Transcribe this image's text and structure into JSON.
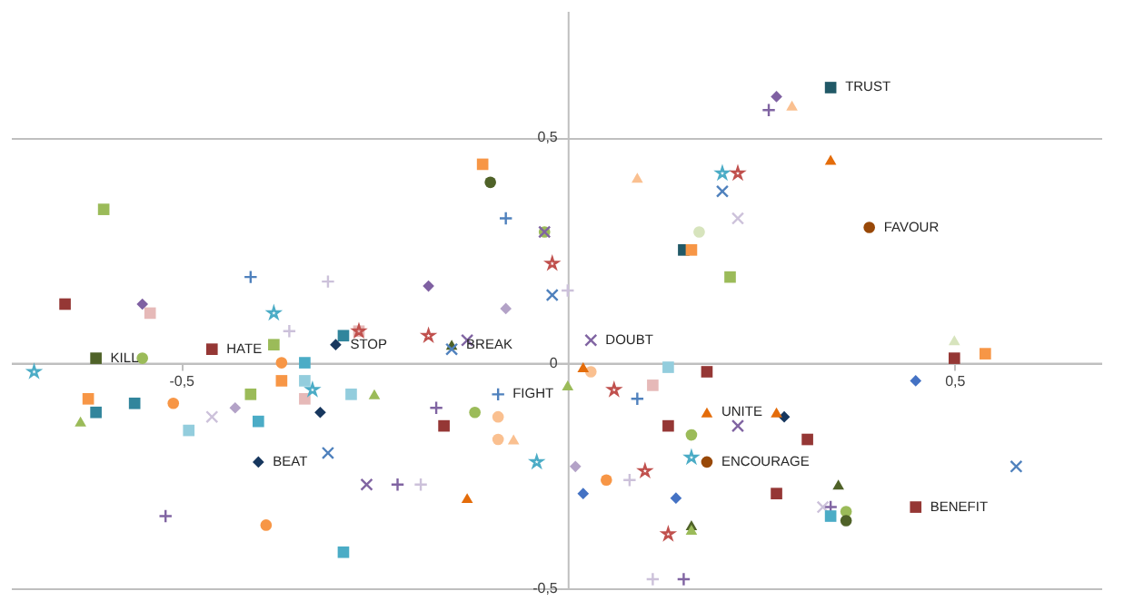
{
  "chart_data": {
    "type": "scatter",
    "xlim": [
      -0.72,
      0.69
    ],
    "ylim": [
      -0.5,
      0.78
    ],
    "xticks": [
      {
        "value": -0.5,
        "label": "-0,5"
      },
      {
        "value": 0.5,
        "label": "0,5"
      }
    ],
    "yticks": [
      {
        "value": -0.5,
        "label": "-0,5"
      },
      {
        "value": 0,
        "label": "0"
      },
      {
        "value": 0.5,
        "label": "0,5"
      }
    ],
    "grid": "y",
    "annotations": [
      {
        "text": "TRUST",
        "x": 0.34,
        "y": 0.61
      },
      {
        "text": "FAVOUR",
        "x": 0.39,
        "y": 0.3
      },
      {
        "text": "UNITE",
        "x": 0.18,
        "y": -0.11
      },
      {
        "text": "ENCOURAGE",
        "x": 0.18,
        "y": -0.22
      },
      {
        "text": "BENEFIT",
        "x": 0.45,
        "y": -0.32
      },
      {
        "text": "BEAT",
        "x": -0.4,
        "y": -0.22
      },
      {
        "text": "HATE",
        "x": -0.46,
        "y": 0.03
      },
      {
        "text": "KILL",
        "x": -0.61,
        "y": 0.01
      },
      {
        "text": "STOP",
        "x": -0.3,
        "y": 0.04
      },
      {
        "text": "BREAK",
        "x": -0.15,
        "y": 0.04
      },
      {
        "text": "FIGHT",
        "x": -0.09,
        "y": -0.07
      },
      {
        "text": "DOUBT",
        "x": 0.03,
        "y": 0.05
      }
    ],
    "series": [
      {
        "marker": "square",
        "color": "#215967",
        "x": [
          0.34,
          0.15
        ],
        "values": [
          0.61,
          0.25
        ]
      },
      {
        "marker": "square",
        "color": "#31859c",
        "x": [
          -0.61,
          -0.56,
          -0.29
        ],
        "values": [
          -0.11,
          -0.09,
          0.06
        ]
      },
      {
        "marker": "square",
        "color": "#93cddd",
        "x": [
          -0.49,
          -0.34,
          -0.28,
          0.13
        ],
        "values": [
          -0.15,
          -0.04,
          -0.07,
          -0.01
        ]
      },
      {
        "marker": "square",
        "color": "#953735",
        "x": [
          -0.65,
          0.45,
          0.18,
          0.13,
          0.27
        ],
        "values": [
          0.13,
          -0.32,
          -0.02,
          -0.14,
          -0.29
        ]
      },
      {
        "marker": "square",
        "color": "#e6b9b8",
        "x": [
          -0.54,
          -0.34,
          -0.27,
          0.11
        ],
        "values": [
          0.11,
          -0.08,
          0.07,
          -0.05
        ]
      },
      {
        "marker": "diamond",
        "color": "#17375e",
        "x": [
          -0.4,
          -0.3,
          -0.32,
          0.28
        ],
        "values": [
          -0.22,
          0.04,
          -0.11,
          -0.12
        ]
      },
      {
        "marker": "diamond",
        "color": "#7f60a2",
        "x": [
          -0.55,
          -0.18,
          0.27
        ],
        "values": [
          0.13,
          0.17,
          0.59
        ]
      },
      {
        "marker": "diamond",
        "color": "#b3a2c7",
        "x": [
          -0.43,
          -0.08,
          0.01
        ],
        "values": [
          -0.1,
          0.12,
          -0.23
        ]
      },
      {
        "marker": "diamond",
        "color": "#4472c4",
        "x": [
          0.02,
          0.14,
          0.45
        ],
        "values": [
          -0.29,
          -0.3,
          -0.04
        ]
      },
      {
        "marker": "circle",
        "color": "#9bbb59",
        "x": [
          -0.55,
          -0.12,
          0.16,
          0.36,
          -0.03
        ],
        "values": [
          0.01,
          -0.11,
          -0.16,
          -0.33,
          0.29
        ]
      },
      {
        "marker": "circle",
        "color": "#4f6228",
        "x": [
          -0.1,
          0.36
        ],
        "values": [
          0.4,
          -0.35
        ]
      },
      {
        "marker": "circle",
        "color": "#f79646",
        "x": [
          -0.37,
          -0.51,
          -0.39,
          0.05
        ],
        "values": [
          0.0,
          -0.09,
          -0.36,
          -0.26
        ]
      },
      {
        "marker": "circle",
        "color": "#984807",
        "x": [
          0.39,
          0.18
        ],
        "values": [
          0.3,
          -0.22
        ]
      },
      {
        "marker": "circle",
        "color": "#fac090",
        "x": [
          -0.09,
          -0.09,
          0.03
        ],
        "values": [
          -0.12,
          -0.17,
          -0.02
        ]
      },
      {
        "marker": "circle",
        "color": "#d7e4bd",
        "x": [
          0.17
        ],
        "values": [
          0.29
        ]
      },
      {
        "marker": "triangle",
        "color": "#4f6228",
        "x": [
          -0.15,
          0.35,
          0.16
        ],
        "values": [
          0.04,
          -0.27,
          -0.36
        ]
      },
      {
        "marker": "triangle",
        "color": "#9bbb59",
        "x": [
          -0.63,
          -0.25,
          0.0,
          0.16
        ],
        "values": [
          -0.13,
          -0.07,
          -0.05,
          -0.37
        ]
      },
      {
        "marker": "triangle",
        "color": "#e46c0a",
        "x": [
          0.34,
          0.18,
          0.27,
          -0.13,
          0.02
        ],
        "values": [
          0.45,
          -0.11,
          -0.11,
          -0.3,
          -0.01
        ]
      },
      {
        "marker": "triangle",
        "color": "#fac090",
        "x": [
          0.29,
          0.09,
          -0.07
        ],
        "values": [
          0.57,
          0.41,
          -0.17
        ]
      },
      {
        "marker": "triangle",
        "color": "#d7e4bd",
        "x": [
          0.5
        ],
        "values": [
          0.05
        ]
      },
      {
        "marker": "cross",
        "color": "#4f81bd",
        "x": [
          -0.41,
          -0.09,
          -0.08,
          0.09
        ],
        "values": [
          0.19,
          -0.07,
          0.32,
          -0.08
        ]
      },
      {
        "marker": "cross",
        "color": "#8064a2",
        "x": [
          -0.52,
          -0.17,
          -0.22,
          0.26,
          0.15,
          0.34
        ],
        "values": [
          -0.34,
          -0.1,
          -0.27,
          0.56,
          -0.48,
          -0.32
        ]
      },
      {
        "marker": "cross",
        "color": "#ccc1da",
        "x": [
          -0.31,
          -0.36,
          -0.19,
          0.11,
          0.08,
          0.0
        ],
        "values": [
          0.18,
          0.07,
          -0.27,
          -0.48,
          -0.26,
          0.16
        ]
      },
      {
        "marker": "x",
        "color": "#8064a2",
        "x": [
          0.03,
          0.22,
          -0.03,
          -0.26,
          -0.13
        ],
        "values": [
          0.05,
          -0.14,
          0.29,
          -0.27,
          0.05
        ]
      },
      {
        "marker": "x",
        "color": "#4f81bd",
        "x": [
          -0.31,
          -0.02,
          -0.15,
          0.2,
          0.58
        ],
        "values": [
          -0.2,
          0.15,
          0.03,
          0.38,
          -0.23
        ]
      },
      {
        "marker": "x",
        "color": "#ccc1da",
        "x": [
          -0.46,
          0.22,
          0.33
        ],
        "values": [
          -0.12,
          0.32,
          -0.32
        ]
      },
      {
        "marker": "star",
        "color": "#4bacc6",
        "x": [
          -0.69,
          -0.38,
          -0.33,
          0.2,
          -0.04,
          0.16
        ],
        "values": [
          -0.02,
          0.11,
          -0.06,
          0.42,
          -0.22,
          -0.21
        ]
      },
      {
        "marker": "star",
        "color": "#c0504d",
        "x": [
          0.22,
          -0.02,
          -0.27,
          -0.18,
          0.06,
          0.1,
          0.13
        ],
        "values": [
          0.42,
          0.22,
          0.07,
          0.06,
          -0.06,
          -0.24,
          -0.38
        ]
      },
      {
        "marker": "square",
        "color": "#f79646",
        "x": [
          -0.11,
          -0.62,
          0.16,
          0.54,
          -0.37
        ],
        "values": [
          0.44,
          -0.08,
          0.25,
          0.02,
          -0.04
        ]
      },
      {
        "marker": "square",
        "color": "#9bbb59",
        "x": [
          -0.6,
          -0.38,
          -0.41,
          0.21
        ],
        "values": [
          0.34,
          0.04,
          -0.07,
          0.19
        ]
      },
      {
        "marker": "square",
        "color": "#953735",
        "x": [
          -0.46,
          -0.16,
          0.31,
          0.5
        ],
        "values": [
          0.03,
          -0.14,
          -0.17,
          0.01
        ]
      },
      {
        "marker": "square",
        "color": "#4f6228",
        "x": [
          -0.61
        ],
        "values": [
          0.01
        ]
      },
      {
        "marker": "square",
        "color": "#4bacc6",
        "x": [
          -0.4,
          -0.34,
          -0.29,
          0.34
        ],
        "values": [
          -0.13,
          0.0,
          -0.42,
          -0.34
        ]
      }
    ]
  }
}
